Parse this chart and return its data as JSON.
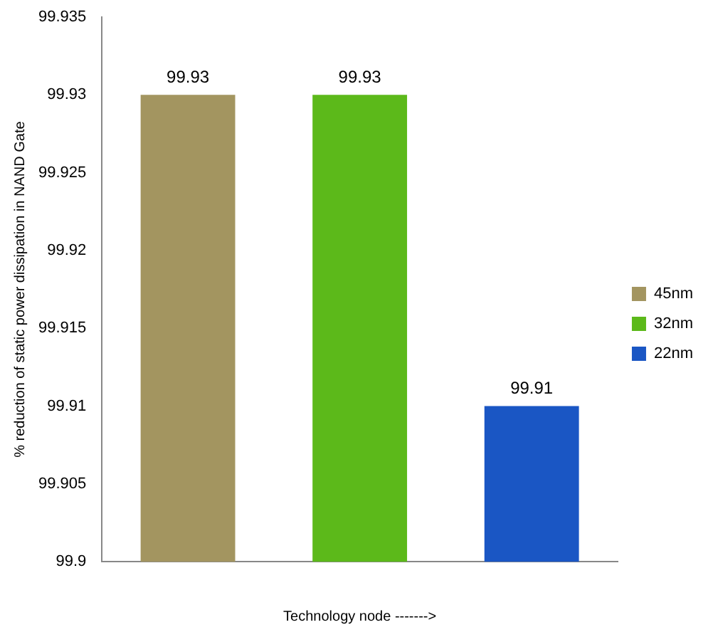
{
  "chart_data": {
    "type": "bar",
    "ylabel": "% reduction of static power dissipation in NAND Gate",
    "xlabel": "Technology node ------->",
    "categories": [
      null,
      null,
      null
    ],
    "series": [
      {
        "name": "45nm",
        "color": "#a39560",
        "values": [
          99.93,
          null,
          null
        ]
      },
      {
        "name": "32nm",
        "color": "#5cb91a",
        "values": [
          null,
          99.93,
          null
        ]
      },
      {
        "name": "22nm",
        "color": "#1a56c4",
        "values": [
          null,
          null,
          99.91
        ]
      }
    ],
    "ylim": [
      99.9,
      99.935
    ],
    "yticks": [
      99.9,
      99.905,
      99.91,
      99.915,
      99.92,
      99.925,
      99.93,
      99.935
    ],
    "grid": false,
    "legend": "right",
    "data_labels": true
  }
}
